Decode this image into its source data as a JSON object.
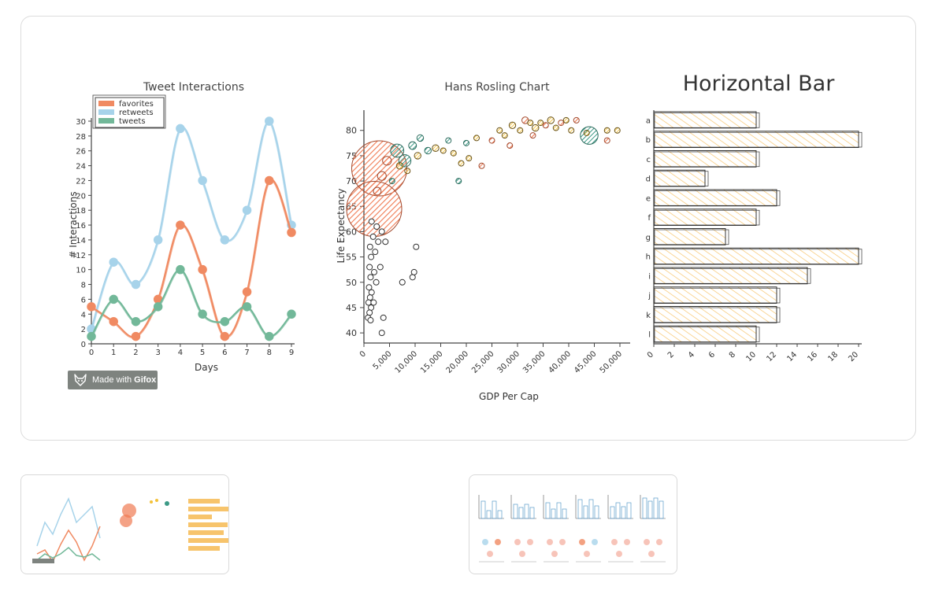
{
  "badge": {
    "prefix": "Made with",
    "brand": "Gifox",
    "icon": "fox-icon"
  },
  "colors": {
    "favorites": "#f08a62",
    "retweets": "#a7d3ea",
    "tweets": "#72b899",
    "rosling_orange": "#f07a52",
    "rosling_teal": "#3c9a86",
    "rosling_gold": "#f4c23a",
    "bar_fill": "#f7c46c"
  },
  "chart_data": [
    {
      "type": "line",
      "title": "Tweet Interactions",
      "xlabel": "Days",
      "ylabel": "# Interactions",
      "x": [
        0,
        1,
        2,
        3,
        4,
        5,
        6,
        7,
        8,
        9
      ],
      "xticks": [
        "0",
        "1",
        "2",
        "3",
        "4",
        "5",
        "6",
        "7",
        "8",
        "9"
      ],
      "yticks": [
        "0",
        "2",
        "4",
        "6",
        "8",
        "10",
        "12",
        "14",
        "16",
        "18",
        "20",
        "22",
        "24",
        "26",
        "28",
        "30"
      ],
      "ylim": [
        0,
        30
      ],
      "legend_position": "top-left",
      "series": [
        {
          "name": "favorites",
          "values": [
            5,
            3,
            1,
            6,
            16,
            10,
            1,
            7,
            22,
            15
          ]
        },
        {
          "name": "retweets",
          "values": [
            2,
            11,
            8,
            14,
            29,
            22,
            14,
            18,
            30,
            16
          ]
        },
        {
          "name": "tweets",
          "values": [
            1,
            6,
            3,
            5,
            10,
            4,
            3,
            5,
            1,
            4
          ]
        }
      ]
    },
    {
      "type": "scatter",
      "title": "Hans Rosling Chart",
      "xlabel": "GDP Per Cap",
      "ylabel": "Life Expectancy",
      "xlim": [
        0,
        52000
      ],
      "ylim": [
        38,
        84
      ],
      "xticks": [
        "0",
        "5,000",
        "10,000",
        "15,000",
        "20,000",
        "25,000",
        "30,000",
        "35,000",
        "40,000",
        "45,000",
        "50,000"
      ],
      "yticks": [
        "40",
        "45",
        "50",
        "55",
        "60",
        "65",
        "70",
        "75",
        "80"
      ],
      "points": [
        {
          "x": 3000,
          "y": 72.5,
          "r": 5,
          "c": "orange"
        },
        {
          "x": 2000,
          "y": 64.5,
          "r": 5,
          "c": "orange"
        },
        {
          "x": 44000,
          "y": 79,
          "r": 1.6,
          "c": "teal"
        },
        {
          "x": 6500,
          "y": 76,
          "r": 1.2,
          "c": "teal"
        },
        {
          "x": 8000,
          "y": 74,
          "r": 1.1,
          "c": "teal"
        },
        {
          "x": 3500,
          "y": 71,
          "r": 0.8,
          "c": "orange"
        },
        {
          "x": 4500,
          "y": 74,
          "r": 0.8,
          "c": "orange"
        },
        {
          "x": 2600,
          "y": 68,
          "r": 0.7,
          "c": "orange"
        },
        {
          "x": 9500,
          "y": 77,
          "r": 0.7,
          "c": "teal"
        },
        {
          "x": 11000,
          "y": 78.5,
          "r": 0.6,
          "c": "teal"
        },
        {
          "x": 12500,
          "y": 76,
          "r": 0.6,
          "c": "teal"
        },
        {
          "x": 7000,
          "y": 73,
          "r": 0.6,
          "c": "gold"
        },
        {
          "x": 10500,
          "y": 75,
          "r": 0.6,
          "c": "gold"
        },
        {
          "x": 14000,
          "y": 76.5,
          "r": 0.6,
          "c": "gold"
        },
        {
          "x": 8500,
          "y": 72,
          "r": 0.5,
          "c": "gold"
        },
        {
          "x": 5500,
          "y": 70,
          "r": 0.5,
          "c": "teal"
        },
        {
          "x": 20000,
          "y": 77.5,
          "r": 0.5,
          "c": "teal"
        },
        {
          "x": 20500,
          "y": 74.5,
          "r": 0.5,
          "c": "gold"
        },
        {
          "x": 19000,
          "y": 73.5,
          "r": 0.5,
          "c": "gold"
        },
        {
          "x": 23000,
          "y": 73,
          "r": 0.5,
          "c": "orange"
        },
        {
          "x": 22000,
          "y": 78.5,
          "r": 0.5,
          "c": "gold"
        },
        {
          "x": 25000,
          "y": 78,
          "r": 0.5,
          "c": "orange"
        },
        {
          "x": 26500,
          "y": 80,
          "r": 0.5,
          "c": "gold"
        },
        {
          "x": 27500,
          "y": 79,
          "r": 0.5,
          "c": "gold"
        },
        {
          "x": 29000,
          "y": 81,
          "r": 0.6,
          "c": "gold"
        },
        {
          "x": 30500,
          "y": 80,
          "r": 0.5,
          "c": "gold"
        },
        {
          "x": 31500,
          "y": 82,
          "r": 0.6,
          "c": "orange"
        },
        {
          "x": 32500,
          "y": 81.5,
          "r": 0.5,
          "c": "gold"
        },
        {
          "x": 33500,
          "y": 80.5,
          "r": 0.6,
          "c": "gold"
        },
        {
          "x": 34500,
          "y": 81.5,
          "r": 0.5,
          "c": "gold"
        },
        {
          "x": 35500,
          "y": 81,
          "r": 0.5,
          "c": "orange"
        },
        {
          "x": 36500,
          "y": 82,
          "r": 0.6,
          "c": "gold"
        },
        {
          "x": 37500,
          "y": 80.5,
          "r": 0.5,
          "c": "gold"
        },
        {
          "x": 38500,
          "y": 81.5,
          "r": 0.5,
          "c": "orange"
        },
        {
          "x": 39500,
          "y": 82,
          "r": 0.5,
          "c": "gold"
        },
        {
          "x": 40500,
          "y": 80,
          "r": 0.5,
          "c": "gold"
        },
        {
          "x": 41500,
          "y": 82,
          "r": 0.5,
          "c": "orange"
        },
        {
          "x": 33000,
          "y": 79,
          "r": 0.5,
          "c": "orange"
        },
        {
          "x": 28500,
          "y": 77,
          "r": 0.5,
          "c": "orange"
        },
        {
          "x": 18500,
          "y": 70,
          "r": 0.5,
          "c": "teal"
        },
        {
          "x": 47500,
          "y": 80,
          "r": 0.5,
          "c": "gold"
        },
        {
          "x": 49500,
          "y": 80,
          "r": 0.5,
          "c": "gold"
        },
        {
          "x": 47500,
          "y": 78,
          "r": 0.5,
          "c": "orange"
        },
        {
          "x": 43500,
          "y": 79.5,
          "r": 0.5,
          "c": "gold"
        },
        {
          "x": 15500,
          "y": 76,
          "r": 0.5,
          "c": "gold"
        },
        {
          "x": 16500,
          "y": 78,
          "r": 0.5,
          "c": "teal"
        },
        {
          "x": 17500,
          "y": 75.5,
          "r": 0.5,
          "c": "gold"
        },
        {
          "x": 1500,
          "y": 62,
          "r": 0.5,
          "c": "white"
        },
        {
          "x": 1800,
          "y": 59,
          "r": 0.5,
          "c": "white"
        },
        {
          "x": 1200,
          "y": 57,
          "r": 0.5,
          "c": "white"
        },
        {
          "x": 1400,
          "y": 55,
          "r": 0.5,
          "c": "white"
        },
        {
          "x": 1100,
          "y": 53,
          "r": 0.5,
          "c": "white"
        },
        {
          "x": 1300,
          "y": 51,
          "r": 0.5,
          "c": "white"
        },
        {
          "x": 1000,
          "y": 49,
          "r": 0.5,
          "c": "white"
        },
        {
          "x": 1500,
          "y": 48,
          "r": 0.5,
          "c": "white"
        },
        {
          "x": 1200,
          "y": 47,
          "r": 0.5,
          "c": "white"
        },
        {
          "x": 900,
          "y": 46,
          "r": 0.5,
          "c": "white"
        },
        {
          "x": 1400,
          "y": 45,
          "r": 0.5,
          "c": "white"
        },
        {
          "x": 1100,
          "y": 44,
          "r": 0.5,
          "c": "white"
        },
        {
          "x": 800,
          "y": 43,
          "r": 0.5,
          "c": "white"
        },
        {
          "x": 1300,
          "y": 42.5,
          "r": 0.5,
          "c": "white"
        },
        {
          "x": 2500,
          "y": 61,
          "r": 0.5,
          "c": "white"
        },
        {
          "x": 3500,
          "y": 60,
          "r": 0.5,
          "c": "white"
        },
        {
          "x": 2200,
          "y": 56,
          "r": 0.5,
          "c": "white"
        },
        {
          "x": 3200,
          "y": 53,
          "r": 0.5,
          "c": "white"
        },
        {
          "x": 2000,
          "y": 52,
          "r": 0.5,
          "c": "white"
        },
        {
          "x": 2400,
          "y": 50,
          "r": 0.5,
          "c": "white"
        },
        {
          "x": 1900,
          "y": 46,
          "r": 0.5,
          "c": "white"
        },
        {
          "x": 3800,
          "y": 43,
          "r": 0.5,
          "c": "white"
        },
        {
          "x": 3500,
          "y": 40,
          "r": 0.5,
          "c": "white"
        },
        {
          "x": 7500,
          "y": 50,
          "r": 0.5,
          "c": "white"
        },
        {
          "x": 9500,
          "y": 51,
          "r": 0.5,
          "c": "white"
        },
        {
          "x": 9800,
          "y": 52,
          "r": 0.5,
          "c": "white"
        },
        {
          "x": 10200,
          "y": 57,
          "r": 0.5,
          "c": "white"
        },
        {
          "x": 4200,
          "y": 58,
          "r": 0.5,
          "c": "white"
        },
        {
          "x": 2800,
          "y": 58,
          "r": 0.5,
          "c": "white"
        }
      ]
    },
    {
      "type": "bar",
      "orientation": "horizontal",
      "title": "Horizontal Bar",
      "categories": [
        "a",
        "b",
        "c",
        "d",
        "e",
        "f",
        "g",
        "h",
        "i",
        "j",
        "k",
        "l"
      ],
      "values": [
        10,
        20,
        10,
        5,
        12,
        10,
        7,
        20,
        15,
        12,
        12,
        10
      ],
      "xlim": [
        0,
        20
      ],
      "xticks": [
        "0",
        "2",
        "4",
        "6",
        "8",
        "10",
        "12",
        "14",
        "16",
        "18",
        "20"
      ]
    }
  ]
}
